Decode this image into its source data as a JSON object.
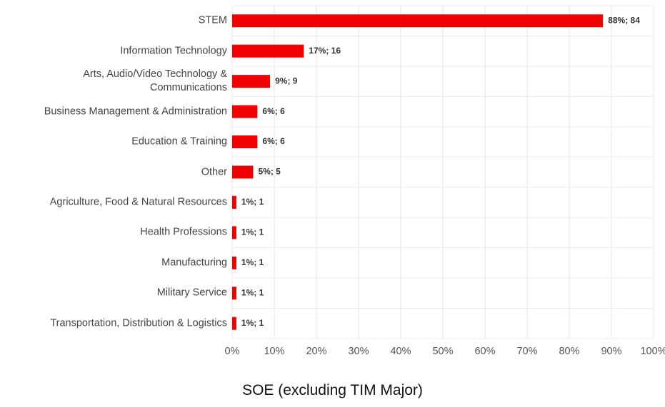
{
  "chart_data": {
    "type": "hbar",
    "title": "SOE (excluding TIM Major)",
    "categories": [
      "STEM",
      "Information Technology",
      "Arts, Audio/Video Technology & Communications",
      "Business Management & Administration",
      "Education & Training",
      "Other",
      "Agriculture, Food & Natural Resources",
      "Health Professions",
      "Manufacturing",
      "Military Service",
      "Transportation, Distribution & Logistics"
    ],
    "values": [
      88,
      17,
      9,
      6,
      6,
      5,
      1,
      1,
      1,
      1,
      1
    ],
    "value_labels": [
      "88%; 84",
      "17%; 16",
      "9%; 9",
      "6%; 6",
      "6%; 6",
      "5%; 5",
      "1%; 1",
      "1%; 1",
      "1%; 1",
      "1%; 1",
      "1%; 1"
    ],
    "color": "#f00000",
    "xlim": [
      0,
      100
    ],
    "xticks": [
      {
        "value": 0,
        "label": "0%"
      },
      {
        "value": 10,
        "label": "10%"
      },
      {
        "value": 20,
        "label": "20%"
      },
      {
        "value": 30,
        "label": "30%"
      },
      {
        "value": 40,
        "label": "40%"
      },
      {
        "value": 50,
        "label": "50%"
      },
      {
        "value": 60,
        "label": "60%"
      },
      {
        "value": 70,
        "label": "70%"
      },
      {
        "value": 80,
        "label": "80%"
      },
      {
        "value": 90,
        "label": "90%"
      },
      {
        "value": 100,
        "label": "100%"
      }
    ],
    "grid": true
  }
}
